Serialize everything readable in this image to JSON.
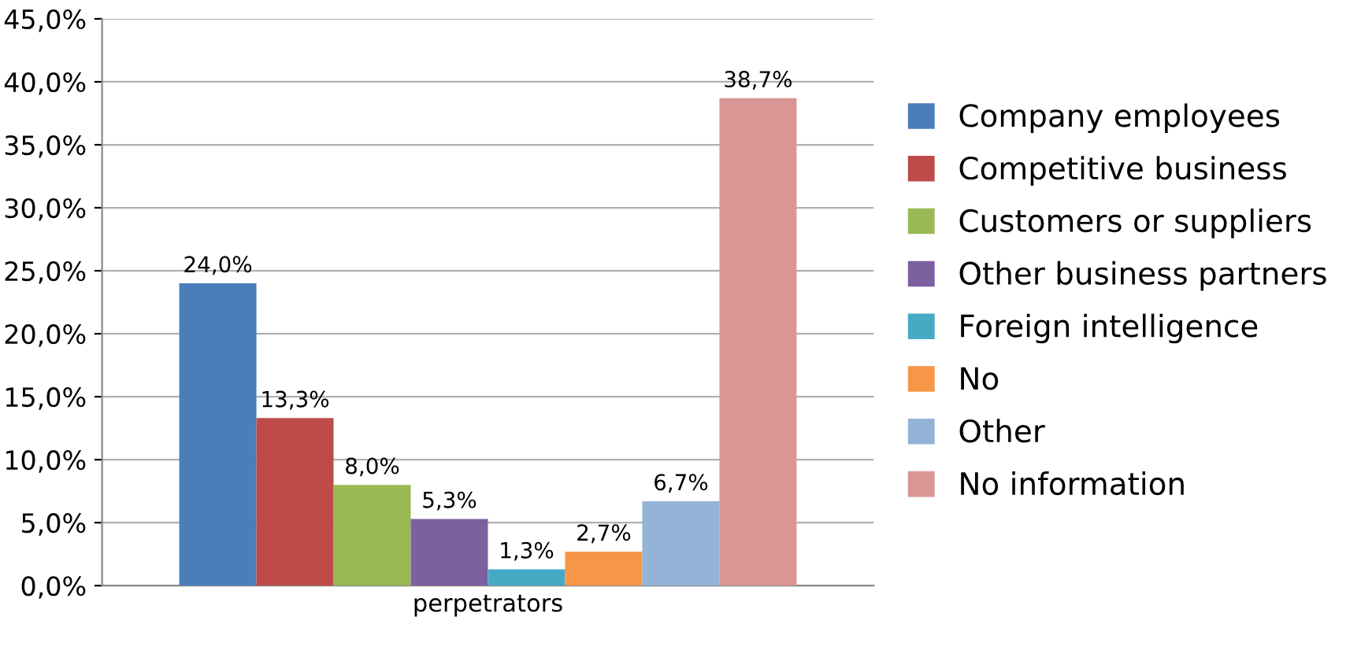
{
  "chart_data": {
    "type": "bar",
    "categories": [
      "perpetrators"
    ],
    "series": [
      {
        "name": "Company employees",
        "color": "#4a7ebb",
        "values": [
          24.0
        ],
        "value_labels": [
          "24,0%"
        ]
      },
      {
        "name": "Competitive business",
        "color": "#be4b48",
        "values": [
          13.3
        ],
        "value_labels": [
          "13,3%"
        ]
      },
      {
        "name": "Customers or suppliers",
        "color": "#98b954",
        "values": [
          8.0
        ],
        "value_labels": [
          "8,0%"
        ]
      },
      {
        "name": "Other business partners",
        "color": "#7d60a0",
        "values": [
          5.3
        ],
        "value_labels": [
          "5,3%"
        ]
      },
      {
        "name": "Foreign intelligence",
        "color": "#46aac5",
        "values": [
          1.3
        ],
        "value_labels": [
          "1,3%"
        ]
      },
      {
        "name": "No",
        "color": "#f79646",
        "values": [
          2.7
        ],
        "value_labels": [
          "2,7%"
        ]
      },
      {
        "name": "Other",
        "color": "#95b3d7",
        "values": [
          6.7
        ],
        "value_labels": [
          "6,7%"
        ]
      },
      {
        "name": "No information",
        "color": "#d99694",
        "values": [
          38.7
        ],
        "value_labels": [
          "38,7%"
        ]
      }
    ],
    "ylim": [
      0,
      45
    ],
    "yticks": [
      {
        "value": 0,
        "label": "0,0%"
      },
      {
        "value": 5,
        "label": "5,0%"
      },
      {
        "value": 10,
        "label": "10,0%"
      },
      {
        "value": 15,
        "label": "15,0%"
      },
      {
        "value": 20,
        "label": "20,0%"
      },
      {
        "value": 25,
        "label": "25,0%"
      },
      {
        "value": 30,
        "label": "30,0%"
      },
      {
        "value": 35,
        "label": "35,0%"
      },
      {
        "value": 40,
        "label": "40,0%"
      },
      {
        "value": 45,
        "label": "45,0%"
      }
    ],
    "grid": "y",
    "legend": "right"
  }
}
